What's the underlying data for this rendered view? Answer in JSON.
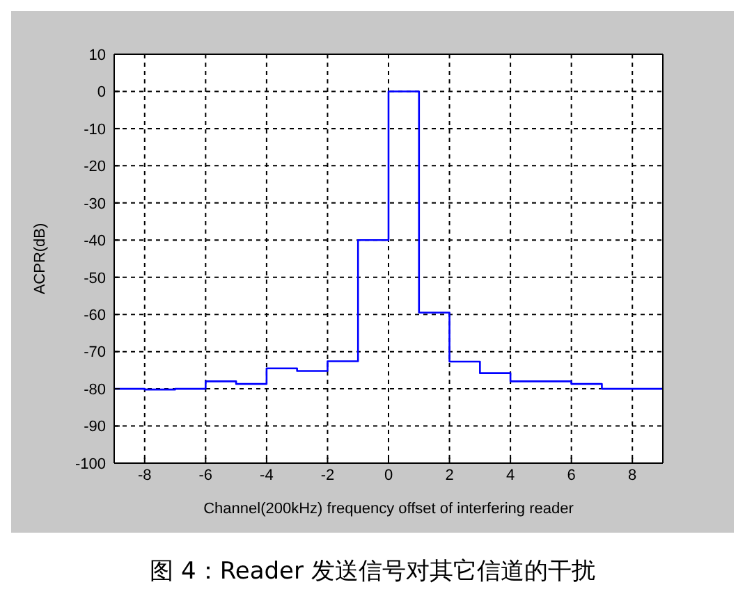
{
  "chart_data": {
    "type": "step",
    "title": "图 4：Reader 发送信号对其它信道的干扰",
    "xlabel": "Channel(200kHz) frequency offset of interfering reader",
    "ylabel": "ACPR(dB)",
    "x": [
      -9,
      -8,
      -7,
      -6,
      -5,
      -4,
      -3,
      -2,
      -1,
      0,
      1,
      2,
      3,
      4,
      5,
      6,
      7,
      8,
      9
    ],
    "series": [
      {
        "color": "#0000ff",
        "values": [
          -80,
          -80.2,
          -80,
          -78,
          -78.7,
          -74.5,
          -75.2,
          -72.6,
          -40,
          0,
          -59.5,
          -72.7,
          -75.8,
          -78,
          -78,
          -78.7,
          -80,
          -80,
          -80
        ]
      }
    ],
    "xlim": [
      -9,
      9
    ],
    "xticks": [
      -8,
      -6,
      -4,
      -2,
      0,
      2,
      4,
      6,
      8
    ],
    "ylim": [
      -100,
      10
    ],
    "yticks": [
      -100,
      -90,
      -80,
      -70,
      -60,
      -50,
      -40,
      -30,
      -20,
      -10,
      0,
      10
    ],
    "grid": true,
    "line_style": "solid",
    "marker": "none"
  }
}
